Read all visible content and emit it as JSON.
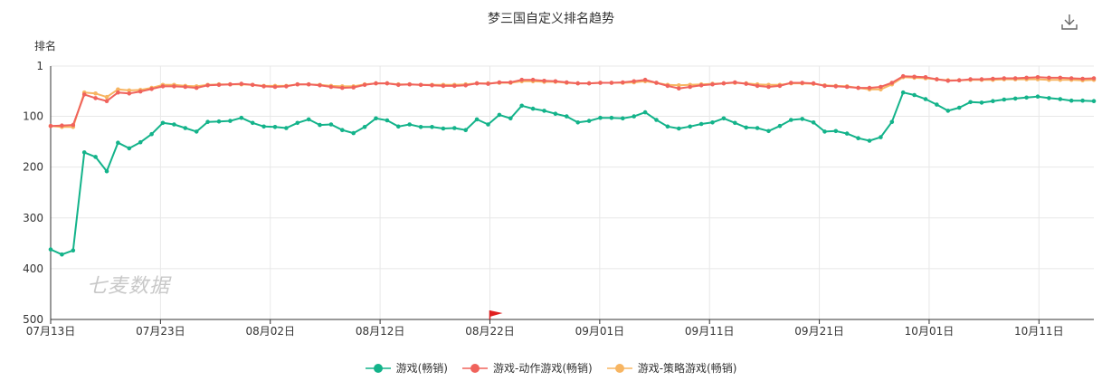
{
  "title": "梦三国自定义排名趋势",
  "watermark": "七麦数据",
  "icons": {
    "download": "download-icon",
    "marker": "red-flag-icon"
  },
  "chart_data": {
    "type": "line",
    "title": "梦三国自定义排名趋势",
    "ylabel": "排名",
    "xlabel": "",
    "y_inverted": true,
    "ylim": [
      1,
      500
    ],
    "yticks": [
      1,
      100,
      200,
      300,
      400,
      500
    ],
    "x_start": "2023-07-13",
    "x_end": "2023-10-16",
    "xticks": [
      "07月13日",
      "07月23日",
      "08月02日",
      "08月12日",
      "08月22日",
      "09月01日",
      "09月11日",
      "09月21日",
      "10月01日",
      "10月11日"
    ],
    "grid": true,
    "legend_position": "bottom",
    "marker_date": "08月22日",
    "series": [
      {
        "name": "游戏(畅销)",
        "color": "#13b38a",
        "values": [
          362,
          372,
          364,
          171,
          180,
          208,
          152,
          163,
          151,
          135,
          113,
          116,
          123,
          130,
          111,
          110,
          109,
          103,
          113,
          120,
          121,
          123,
          113,
          106,
          117,
          116,
          127,
          133,
          121,
          104,
          108,
          120,
          116,
          121,
          121,
          124,
          123,
          127,
          106,
          116,
          97,
          104,
          79,
          85,
          89,
          95,
          100,
          112,
          109,
          103,
          103,
          104,
          100,
          92,
          107,
          120,
          124,
          120,
          115,
          112,
          104,
          113,
          122,
          123,
          129,
          119,
          107,
          105,
          112,
          130,
          129,
          134,
          143,
          148,
          141,
          111,
          53,
          58,
          66,
          77,
          89,
          83,
          72,
          73,
          70,
          67,
          65,
          63,
          61,
          64,
          66,
          69,
          69,
          70
        ]
      },
      {
        "name": "游戏-动作游戏(畅销)",
        "color": "#f0635c",
        "values": [
          119,
          118,
          117,
          57,
          64,
          70,
          53,
          55,
          51,
          46,
          41,
          41,
          42,
          44,
          39,
          38,
          37,
          36,
          38,
          41,
          42,
          41,
          37,
          37,
          39,
          42,
          44,
          43,
          38,
          35,
          35,
          38,
          37,
          38,
          39,
          40,
          40,
          39,
          35,
          36,
          33,
          33,
          28,
          28,
          30,
          31,
          33,
          35,
          35,
          34,
          34,
          33,
          31,
          28,
          34,
          40,
          45,
          42,
          39,
          37,
          35,
          33,
          36,
          40,
          42,
          40,
          34,
          34,
          35,
          40,
          41,
          42,
          44,
          44,
          42,
          34,
          21,
          22,
          23,
          27,
          30,
          29,
          27,
          27,
          26,
          25,
          25,
          24,
          23,
          24,
          24,
          25,
          26,
          25
        ]
      },
      {
        "name": "游戏-策略游戏(畅销)",
        "color": "#f7b562",
        "values": [
          119,
          121,
          121,
          53,
          55,
          62,
          47,
          49,
          48,
          44,
          38,
          38,
          40,
          41,
          38,
          37,
          37,
          37,
          38,
          40,
          40,
          40,
          37,
          37,
          38,
          40,
          41,
          41,
          37,
          35,
          35,
          37,
          37,
          38,
          38,
          38,
          38,
          37,
          35,
          35,
          34,
          34,
          31,
          31,
          32,
          32,
          34,
          35,
          35,
          34,
          34,
          34,
          33,
          31,
          34,
          38,
          39,
          38,
          37,
          36,
          35,
          34,
          35,
          37,
          38,
          38,
          35,
          35,
          36,
          39,
          40,
          41,
          44,
          47,
          47,
          37,
          23,
          24,
          25,
          27,
          29,
          29,
          28,
          28,
          28,
          27,
          27,
          27,
          27,
          28,
          28,
          28,
          29,
          28
        ]
      }
    ]
  }
}
